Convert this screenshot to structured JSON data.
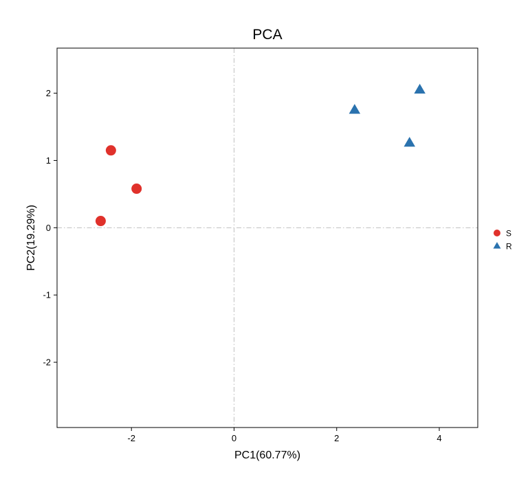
{
  "chart_data": {
    "type": "scatter",
    "title": "PCA",
    "xlabel": "PC1(60.77%)",
    "ylabel": "PC2(19.29%)",
    "xlim": [
      -3.45,
      4.75
    ],
    "ylim": [
      -2.97,
      2.67
    ],
    "xticks": [
      -2,
      0,
      2,
      4
    ],
    "yticks": [
      -2,
      -1,
      0,
      1,
      2
    ],
    "xtick_labels": [
      "-2",
      "0",
      "2",
      "4"
    ],
    "ytick_labels": [
      "-2",
      "-1",
      "0",
      "1",
      "2"
    ],
    "reference_lines": {
      "x": 0,
      "y": 0,
      "style": "dotdash"
    },
    "grid": false,
    "legend_position": "right",
    "series": [
      {
        "name": "S",
        "marker": "circle",
        "color": "#e0312b",
        "points": [
          {
            "x": -2.4,
            "y": 1.15
          },
          {
            "x": -1.9,
            "y": 0.58
          },
          {
            "x": -2.6,
            "y": 0.1
          }
        ]
      },
      {
        "name": "R",
        "marker": "triangle",
        "color": "#2a72ae",
        "points": [
          {
            "x": 3.62,
            "y": 2.05
          },
          {
            "x": 2.35,
            "y": 1.75
          },
          {
            "x": 3.42,
            "y": 1.26
          }
        ]
      }
    ]
  }
}
